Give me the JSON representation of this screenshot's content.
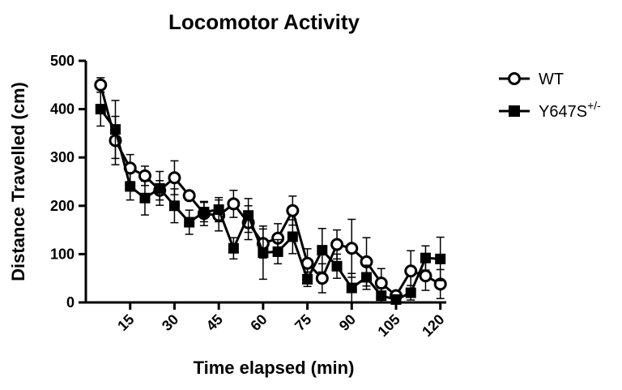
{
  "chart_data": {
    "type": "line",
    "title": "Locomotor Activity",
    "xlabel": "Time elapsed (min)",
    "ylabel": "Distance Travelled (cm)",
    "xlim": [
      0,
      122
    ],
    "ylim": [
      0,
      500
    ],
    "xticks": [
      15,
      30,
      45,
      60,
      75,
      90,
      105,
      120
    ],
    "yticks": [
      0,
      100,
      200,
      300,
      400,
      500
    ],
    "grid": false,
    "legend_position": "top-right",
    "x": [
      5,
      10,
      15,
      20,
      25,
      30,
      35,
      40,
      45,
      50,
      55,
      60,
      65,
      70,
      75,
      80,
      85,
      90,
      95,
      100,
      105,
      110,
      115,
      120
    ],
    "series": [
      {
        "name": "WT",
        "marker": "open-circle",
        "values": [
          450,
          335,
          278,
          262,
          232,
          258,
          221,
          184,
          180,
          204,
          165,
          122,
          133,
          190,
          81,
          50,
          120,
          112,
          84,
          40,
          14,
          65,
          55,
          38
        ],
        "errors": [
          15,
          50,
          28,
          20,
          20,
          35,
          10,
          25,
          32,
          28,
          35,
          30,
          30,
          30,
          30,
          30,
          30,
          60,
          50,
          30,
          8,
          42,
          30,
          30
        ]
      },
      {
        "name": "Y647S",
        "name_superscript": "+/-",
        "marker": "filled-square",
        "values": [
          400,
          358,
          240,
          216,
          236,
          200,
          166,
          187,
          192,
          112,
          180,
          103,
          105,
          136,
          48,
          108,
          75,
          30,
          52,
          14,
          6,
          20,
          92,
          90
        ],
        "errors": [
          35,
          60,
          28,
          35,
          35,
          35,
          25,
          20,
          25,
          22,
          35,
          55,
          25,
          35,
          15,
          45,
          25,
          30,
          25,
          15,
          8,
          15,
          25,
          45
        ]
      }
    ],
    "colors": {
      "line": "#000000",
      "background": "#ffffff"
    }
  }
}
